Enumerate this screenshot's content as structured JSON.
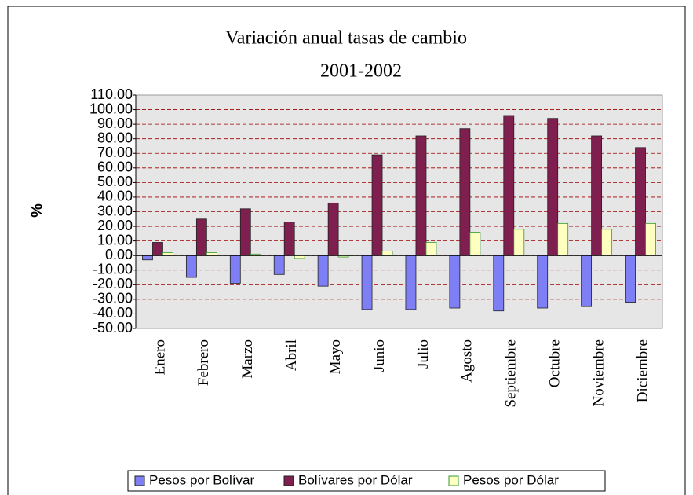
{
  "chart_data": {
    "type": "bar",
    "title": "Variación anual tasas de cambio",
    "subtitle": "2001-2002",
    "y_label": "%",
    "categories": [
      "Enero",
      "Febrero",
      "Marzo",
      "Abril",
      "Mayo",
      "Junio",
      "Julio",
      "Agosto",
      "Septiembre",
      "Octubre",
      "Noviembre",
      "Diciembre"
    ],
    "series": [
      {
        "name": "Pesos por Bolívar",
        "color": "#7f7ff5",
        "values": [
          -3,
          -15,
          -19,
          -13,
          -21,
          -37,
          -37,
          -36,
          -38,
          -36,
          -35,
          -32
        ]
      },
      {
        "name": "Bolívares por Dólar",
        "color": "#7f1f4f",
        "values": [
          9,
          25,
          32,
          23,
          36,
          69,
          82,
          87,
          96,
          94,
          82,
          74
        ]
      },
      {
        "name": "Pesos por Dólar",
        "color": "#ffffc0",
        "values": [
          2,
          2,
          1,
          -2,
          -1,
          3,
          9,
          16,
          18,
          22,
          18,
          22
        ]
      }
    ],
    "ylim": [
      -50,
      110
    ],
    "yticks": [
      {
        "value": -50,
        "label": "-50.00"
      },
      {
        "value": -40,
        "label": "-40.00"
      },
      {
        "value": -30,
        "label": "-30.00"
      },
      {
        "value": -20,
        "label": "-20.00"
      },
      {
        "value": -10,
        "label": "-10.00"
      },
      {
        "value": 0,
        "label": "0.00"
      },
      {
        "value": 10,
        "label": "10.00"
      },
      {
        "value": 20,
        "label": "20.00"
      },
      {
        "value": 30,
        "label": "30.00"
      },
      {
        "value": 40,
        "label": "40.00"
      },
      {
        "value": 50,
        "label": "50.00"
      },
      {
        "value": 60,
        "label": "60.00"
      },
      {
        "value": 70,
        "label": "70.00"
      },
      {
        "value": 80,
        "label": "80.00"
      },
      {
        "value": 90,
        "label": "90.00"
      },
      {
        "value": 100,
        "label": "100.00"
      },
      {
        "value": 110,
        "label": "110.00"
      }
    ],
    "grid": true,
    "legend": "bottom"
  }
}
